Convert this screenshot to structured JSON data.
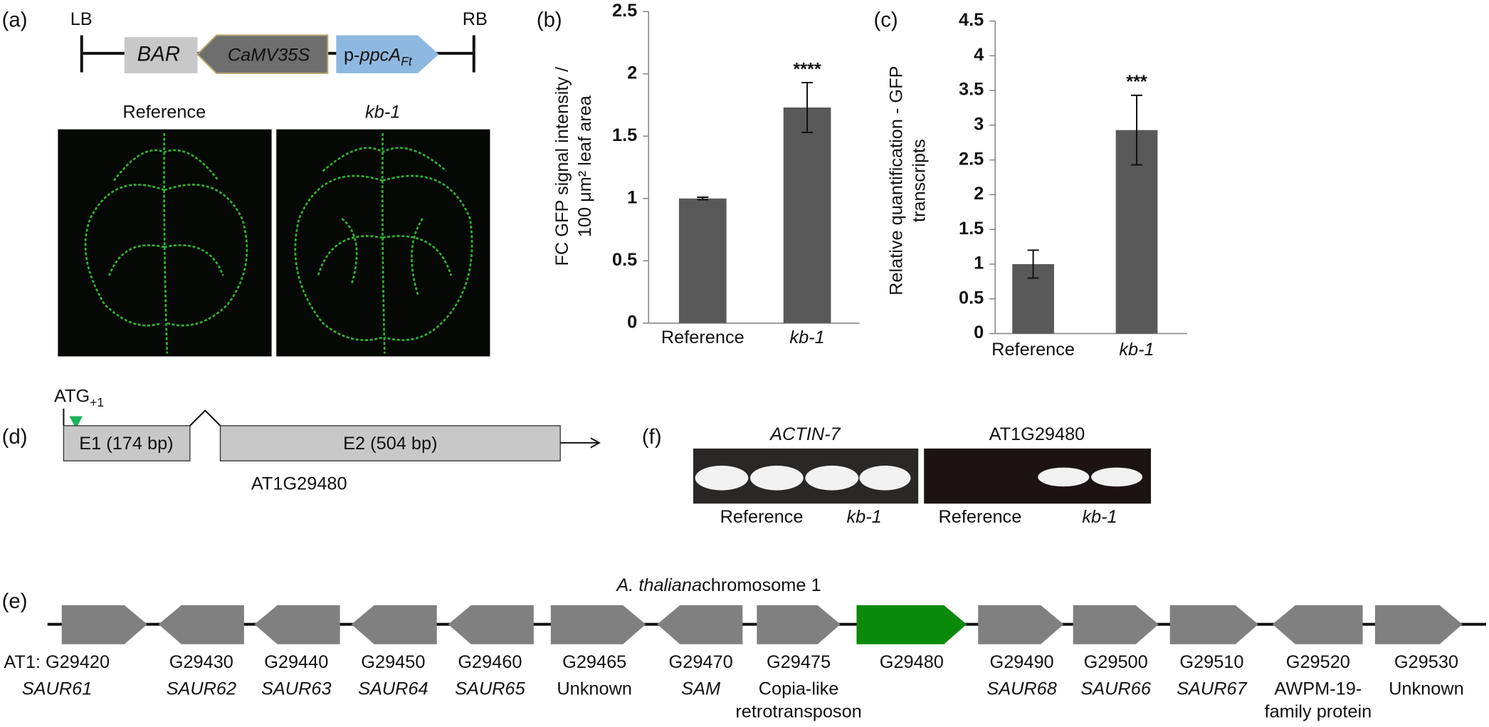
{
  "panel_labels": [
    "(a)",
    "(b)",
    "(c)",
    "(d)",
    "(e)",
    "(f)"
  ],
  "construct": {
    "lb": "LB",
    "rb": "RB",
    "bar": "BAR",
    "promoter": "CaMV35S",
    "gene_prefix": "p-",
    "gene_name": "ppcA",
    "gene_sub": "Ft"
  },
  "images": {
    "labels": [
      "Reference",
      "kb-1"
    ]
  },
  "chart_data": [
    {
      "type": "bar",
      "categories": [
        "Reference",
        "kb-1"
      ],
      "values": [
        1,
        1.73
      ],
      "errors": [
        0.01,
        0.2
      ],
      "annotations": [
        null,
        "****"
      ],
      "color": "#595959",
      "ylabel": [
        "FC GFP signal intensity /",
        "100 μm² leaf area"
      ],
      "ylim": [
        0,
        2.5
      ],
      "yticks": [
        0,
        0.5,
        1,
        1.5,
        2,
        2.5
      ]
    },
    {
      "type": "bar",
      "categories": [
        "Reference",
        "kb-1"
      ],
      "values": [
        1,
        2.93
      ],
      "errors": [
        0.2,
        0.5
      ],
      "annotations": [
        null,
        "***"
      ],
      "color": "#595959",
      "ylabel": [
        "Relative quantification - GFP",
        "transcripts"
      ],
      "ylim": [
        0,
        4.5
      ],
      "yticks": [
        0,
        0.5,
        1,
        1.5,
        2,
        2.5,
        3,
        3.5,
        4,
        4.5
      ]
    }
  ],
  "gene_model": {
    "start": "ATG",
    "start_sub": "+1",
    "exon1": "E1 (174 bp)",
    "exon2": "E2 (504 bp)",
    "locus": "AT1G29480"
  },
  "gel": {
    "titles": [
      "ACTIN-7",
      "AT1G29480"
    ],
    "lanes": [
      "Reference",
      "kb-1",
      "Reference",
      "kb-1"
    ]
  },
  "chromosome": {
    "title_italic": "A. thaliana",
    "title": "chromosome 1",
    "genes": [
      {
        "id": "AT1: G29420",
        "name": [
          "SAUR61"
        ],
        "direction": "right",
        "italic": true,
        "color": "#808080"
      },
      {
        "id": "G29430",
        "name": [
          "SAUR62"
        ],
        "direction": "left",
        "italic": true,
        "color": "#808080"
      },
      {
        "id": "G29440",
        "name": [
          "SAUR63"
        ],
        "direction": "left",
        "italic": true,
        "color": "#808080"
      },
      {
        "id": "G29450",
        "name": [
          "SAUR64"
        ],
        "direction": "left",
        "italic": true,
        "color": "#808080"
      },
      {
        "id": "G29460",
        "name": [
          "SAUR65"
        ],
        "direction": "left",
        "italic": true,
        "color": "#808080"
      },
      {
        "id": "G29465",
        "name": [
          "Unknown"
        ],
        "direction": "right",
        "italic": false,
        "color": "#808080"
      },
      {
        "id": "G29470",
        "name": [
          "SAM"
        ],
        "direction": "left",
        "italic": true,
        "color": "#808080"
      },
      {
        "id": "G29475",
        "name": [
          "Copia-like",
          "retrotransposon"
        ],
        "direction": "right",
        "italic": false,
        "color": "#808080"
      },
      {
        "id": "G29480",
        "name": [],
        "direction": "right",
        "italic": false,
        "color": "#0a8a0a"
      },
      {
        "id": "G29490",
        "name": [
          "SAUR68"
        ],
        "direction": "right",
        "italic": true,
        "color": "#808080"
      },
      {
        "id": "G29500",
        "name": [
          "SAUR66"
        ],
        "direction": "right",
        "italic": true,
        "color": "#808080"
      },
      {
        "id": "G29510",
        "name": [
          "SAUR67"
        ],
        "direction": "right",
        "italic": true,
        "color": "#808080"
      },
      {
        "id": "G29520",
        "name": [
          "AWPM-19-",
          "family protein"
        ],
        "direction": "left",
        "italic": false,
        "color": "#808080"
      },
      {
        "id": "G29530",
        "name": [
          "Unknown"
        ],
        "direction": "right",
        "italic": false,
        "color": "#808080"
      }
    ]
  }
}
